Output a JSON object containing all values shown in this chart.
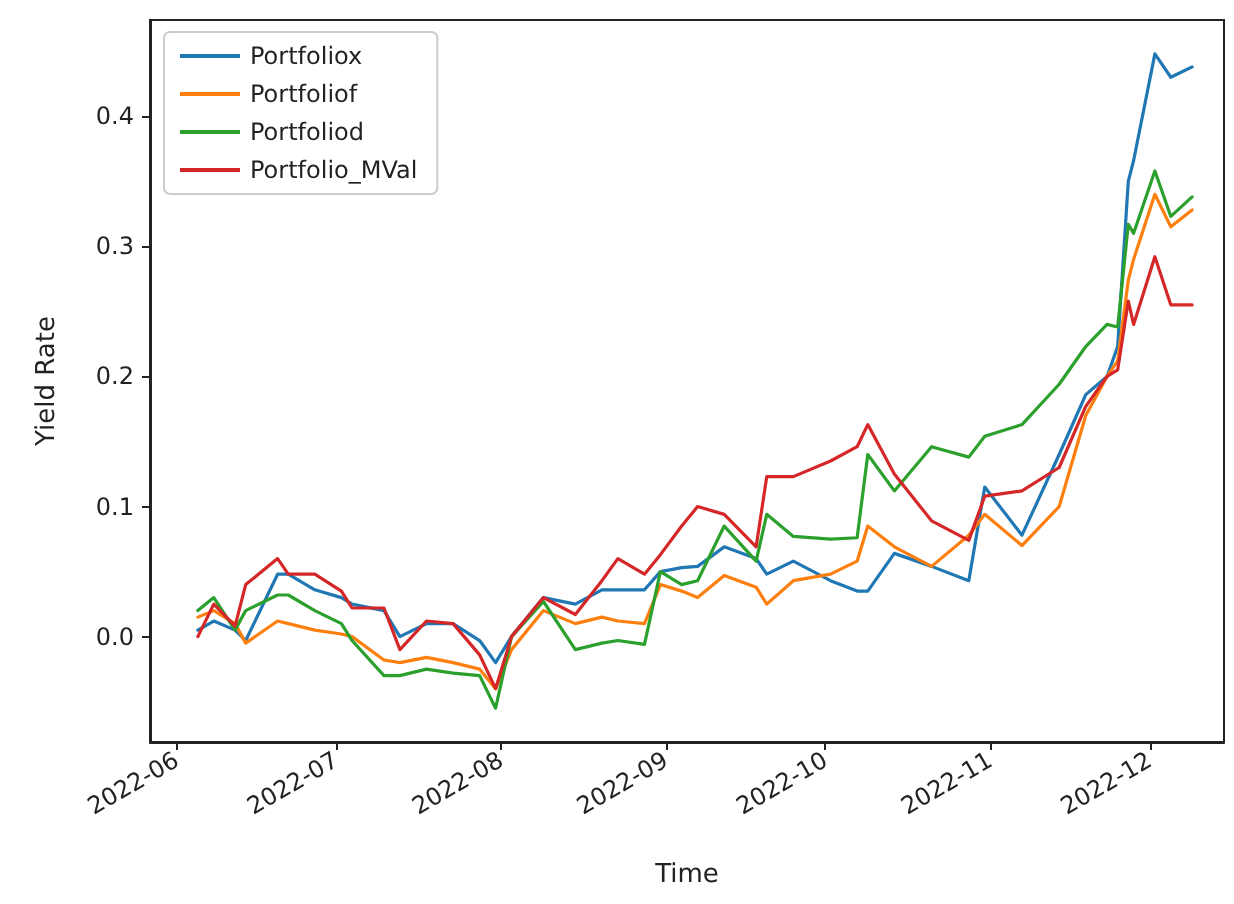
{
  "chart_data": {
    "type": "line",
    "xlabel": "Time",
    "ylabel": "Yield Rate",
    "x": [
      "2022-06-05",
      "2022-06-08",
      "2022-06-12",
      "2022-06-14",
      "2022-06-20",
      "2022-06-22",
      "2022-06-27",
      "2022-07-02",
      "2022-07-04",
      "2022-07-10",
      "2022-07-13",
      "2022-07-18",
      "2022-07-23",
      "2022-07-28",
      "2022-07-31",
      "2022-08-03",
      "2022-08-09",
      "2022-08-15",
      "2022-08-20",
      "2022-08-23",
      "2022-08-28",
      "2022-08-31",
      "2022-09-04",
      "2022-09-07",
      "2022-09-12",
      "2022-09-18",
      "2022-09-20",
      "2022-09-25",
      "2022-10-02",
      "2022-10-07",
      "2022-10-09",
      "2022-10-14",
      "2022-10-21",
      "2022-10-28",
      "2022-10-31",
      "2022-11-07",
      "2022-11-14",
      "2022-11-19",
      "2022-11-23",
      "2022-11-25",
      "2022-11-27",
      "2022-11-28",
      "2022-12-02",
      "2022-12-05",
      "2022-12-09"
    ],
    "series": [
      {
        "name": "Portfoliox",
        "color": "#1f77b4",
        "values": [
          0.005,
          0.012,
          0.005,
          -0.003,
          0.048,
          0.048,
          0.036,
          0.03,
          0.025,
          0.02,
          0.0,
          0.01,
          0.01,
          -0.003,
          -0.02,
          0.0,
          0.03,
          0.025,
          0.036,
          0.036,
          0.036,
          0.05,
          0.053,
          0.054,
          0.069,
          0.06,
          0.048,
          0.058,
          0.043,
          0.035,
          0.035,
          0.064,
          0.054,
          0.043,
          0.115,
          0.078,
          0.14,
          0.186,
          0.2,
          0.223,
          0.35,
          0.366,
          0.448,
          0.43,
          0.438
        ]
      },
      {
        "name": "Portfoliof",
        "color": "#ff7f0e",
        "values": [
          0.015,
          0.02,
          0.01,
          -0.005,
          0.012,
          0.01,
          0.005,
          0.002,
          0.0,
          -0.018,
          -0.02,
          -0.016,
          -0.02,
          -0.025,
          -0.04,
          -0.01,
          0.02,
          0.01,
          0.015,
          0.012,
          0.01,
          0.04,
          0.035,
          0.03,
          0.047,
          0.038,
          0.025,
          0.043,
          0.048,
          0.058,
          0.085,
          0.069,
          0.054,
          0.078,
          0.094,
          0.07,
          0.1,
          0.17,
          0.2,
          0.212,
          0.274,
          0.29,
          0.34,
          0.315,
          0.328
        ]
      },
      {
        "name": "Portfoliod",
        "color": "#2ca02c",
        "values": [
          0.02,
          0.03,
          0.005,
          0.02,
          0.032,
          0.032,
          0.02,
          0.01,
          -0.003,
          -0.03,
          -0.03,
          -0.025,
          -0.028,
          -0.03,
          -0.055,
          0.0,
          0.027,
          -0.01,
          -0.005,
          -0.003,
          -0.006,
          0.05,
          0.04,
          0.043,
          0.085,
          0.058,
          0.094,
          0.077,
          0.075,
          0.076,
          0.14,
          0.112,
          0.146,
          0.138,
          0.154,
          0.163,
          0.194,
          0.223,
          0.24,
          0.238,
          0.317,
          0.31,
          0.358,
          0.323,
          0.338
        ]
      },
      {
        "name": "Portfolio_MVal",
        "color": "#d62728",
        "values": [
          0.0,
          0.025,
          0.008,
          0.04,
          0.06,
          0.048,
          0.048,
          0.035,
          0.022,
          0.022,
          -0.01,
          0.012,
          0.01,
          -0.014,
          -0.04,
          0.0,
          0.03,
          0.017,
          0.043,
          0.06,
          0.048,
          0.063,
          0.085,
          0.1,
          0.094,
          0.069,
          0.123,
          0.123,
          0.135,
          0.146,
          0.163,
          0.125,
          0.089,
          0.074,
          0.108,
          0.112,
          0.13,
          0.177,
          0.2,
          0.205,
          0.258,
          0.24,
          0.292,
          0.255,
          0.255
        ]
      }
    ],
    "xlim": [
      "2022-05-27",
      "2022-12-15"
    ],
    "xticks": [
      {
        "value": "2022-06-01",
        "label": "2022-06"
      },
      {
        "value": "2022-07-01",
        "label": "2022-07"
      },
      {
        "value": "2022-08-01",
        "label": "2022-08"
      },
      {
        "value": "2022-09-01",
        "label": "2022-09"
      },
      {
        "value": "2022-10-01",
        "label": "2022-10"
      },
      {
        "value": "2022-11-01",
        "label": "2022-11"
      },
      {
        "value": "2022-12-01",
        "label": "2022-12"
      }
    ],
    "ylim": [
      -0.081,
      0.474
    ],
    "yticks": [
      {
        "value": 0,
        "label": "0.0"
      },
      {
        "value": 0.1,
        "label": "0.1"
      },
      {
        "value": 0.2,
        "label": "0.2"
      },
      {
        "value": 0.3,
        "label": "0.3"
      },
      {
        "value": 0.4,
        "label": "0.4"
      }
    ],
    "legend": "top left",
    "grid": false,
    "marker": "none",
    "line_style": "solid"
  }
}
